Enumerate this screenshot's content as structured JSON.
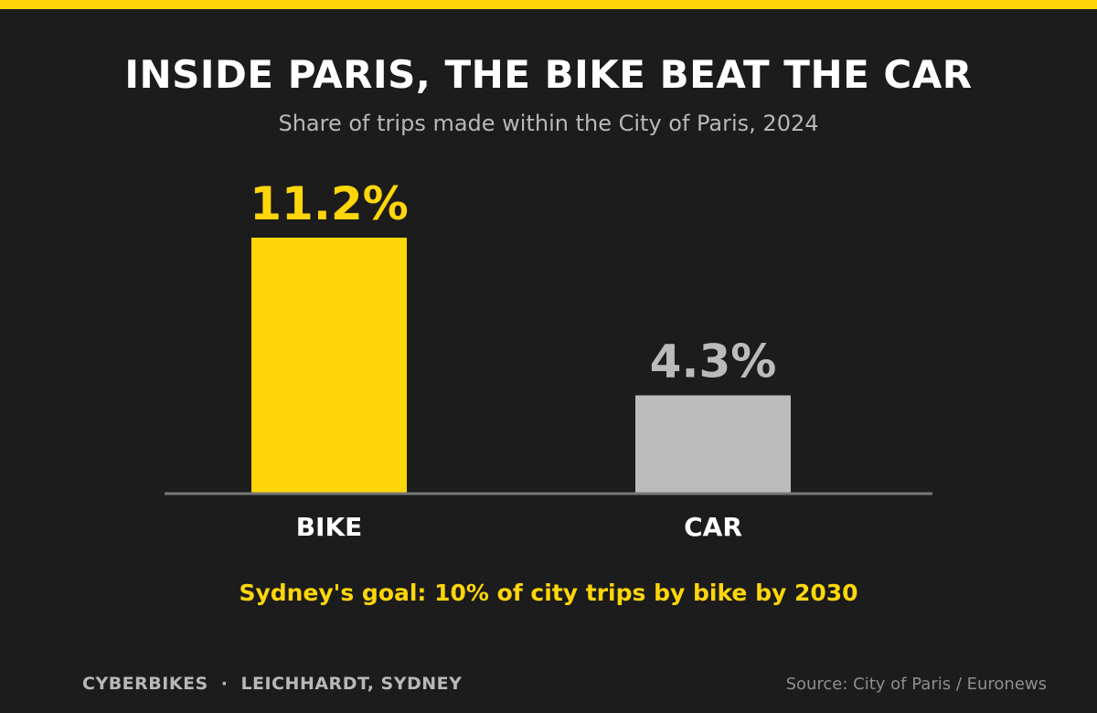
{
  "header": {
    "title": "INSIDE PARIS, THE BIKE BEAT THE CAR",
    "subtitle": "Share of trips made within the City of Paris, 2024"
  },
  "chart_data": {
    "type": "bar",
    "title": "INSIDE PARIS, THE BIKE BEAT THE CAR",
    "subtitle": "Share of trips made within the City of Paris, 2024",
    "categories": [
      "BIKE",
      "CAR"
    ],
    "values": [
      11.2,
      4.3
    ],
    "data_labels": [
      "11.2%",
      "4.3%"
    ],
    "bar_colors": [
      "#ffd60a",
      "#bbbbbb"
    ],
    "label_colors": [
      "#ffd60a",
      "#bbbbbb"
    ],
    "unit": "%",
    "xlabel": "",
    "ylabel": "",
    "ylim": [
      0,
      11.2
    ],
    "grid": false,
    "legend": "none"
  },
  "callout": "Sydney's goal: 10% of city trips by bike by 2030",
  "footer": {
    "brand": "CYBERBIKES",
    "separator": "·",
    "location": "LEICHHARDT, SYDNEY",
    "source": "Source: City of Paris / Euronews"
  },
  "colors": {
    "background": "#1c1c1c",
    "accent": "#ffd60a",
    "secondary": "#bbbbbb",
    "text": "#ffffff",
    "muted": "#b8b8b8",
    "axis": "#777777"
  }
}
